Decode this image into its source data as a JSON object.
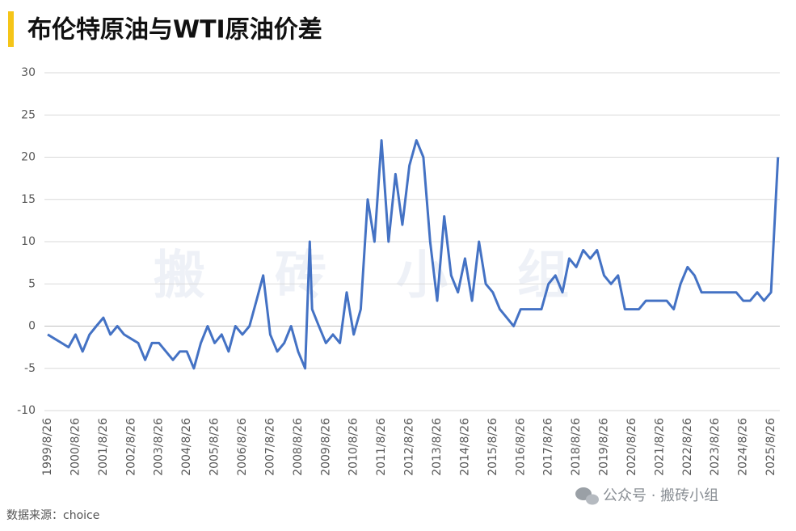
{
  "chart_data": {
    "type": "line",
    "title": "布伦特原油与WTI原油价差",
    "x": [
      "1999/8/26",
      "1999/11/26",
      "2000/2/26",
      "2000/5/26",
      "2000/8/26",
      "2000/11/26",
      "2001/2/26",
      "2001/5/26",
      "2001/8/26",
      "2001/11/26",
      "2002/2/26",
      "2002/5/26",
      "2002/8/26",
      "2002/11/26",
      "2003/2/26",
      "2003/5/26",
      "2003/8/26",
      "2003/11/26",
      "2004/2/26",
      "2004/5/26",
      "2004/8/26",
      "2004/11/26",
      "2005/2/26",
      "2005/5/26",
      "2005/8/26",
      "2005/11/26",
      "2006/2/26",
      "2006/5/26",
      "2006/8/26",
      "2006/11/26",
      "2007/2/26",
      "2007/5/26",
      "2007/8/26",
      "2007/11/26",
      "2008/2/26",
      "2008/5/26",
      "2008/8/26",
      "2008/11/26",
      "2009/1/26",
      "2009/2/26",
      "2009/5/26",
      "2009/8/26",
      "2009/11/26",
      "2010/2/26",
      "2010/5/26",
      "2010/8/26",
      "2010/11/26",
      "2011/2/26",
      "2011/5/26",
      "2011/8/26",
      "2011/11/26",
      "2012/2/26",
      "2012/5/26",
      "2012/8/26",
      "2012/11/26",
      "2013/2/26",
      "2013/5/26",
      "2013/8/26",
      "2013/11/26",
      "2014/2/26",
      "2014/5/26",
      "2014/8/26",
      "2014/11/26",
      "2015/2/26",
      "2015/5/26",
      "2015/8/26",
      "2015/11/26",
      "2016/2/26",
      "2016/5/26",
      "2016/8/26",
      "2016/11/26",
      "2017/2/26",
      "2017/5/26",
      "2017/8/26",
      "2017/11/26",
      "2018/2/26",
      "2018/5/26",
      "2018/8/26",
      "2018/11/26",
      "2019/2/26",
      "2019/5/26",
      "2019/8/26",
      "2019/11/26",
      "2020/2/26",
      "2020/5/26",
      "2020/8/26",
      "2020/11/26",
      "2021/2/26",
      "2021/5/26",
      "2021/8/26",
      "2021/11/26",
      "2022/2/26",
      "2022/5/26",
      "2022/8/26",
      "2022/11/26",
      "2023/2/26",
      "2023/5/26",
      "2023/8/26",
      "2023/11/26",
      "2024/2/26",
      "2024/5/26",
      "2024/8/26",
      "2024/11/26",
      "2025/2/26",
      "2025/5/26",
      "2025/8/26",
      "2025/11/26"
    ],
    "values": [
      -1,
      -1.5,
      -2,
      -2.5,
      -1,
      -3,
      -1,
      0,
      1,
      -1,
      0,
      -1,
      -1.5,
      -2,
      -4,
      -2,
      -2,
      -3,
      -4,
      -3,
      -3,
      -5,
      -2,
      0,
      -2,
      -1,
      -3,
      0,
      -1,
      0,
      3,
      6,
      -1,
      -3,
      -2,
      0,
      -3,
      -5,
      10,
      2,
      0,
      -2,
      -1,
      -2,
      4,
      -1,
      2,
      15,
      10,
      22,
      10,
      18,
      12,
      19,
      22,
      20,
      10,
      3,
      13,
      6,
      4,
      8,
      3,
      10,
      5,
      4,
      2,
      1,
      0,
      2,
      2,
      2,
      2,
      5,
      6,
      4,
      8,
      7,
      9,
      8,
      9,
      6,
      5,
      6,
      2,
      2,
      2,
      3,
      3,
      3,
      3,
      2,
      5,
      7,
      6,
      4,
      4,
      4,
      4,
      4,
      4,
      3,
      3,
      4,
      3,
      4,
      20
    ],
    "color": "#4472c4",
    "xlim": [
      "1999/8/26",
      "2025/12/20"
    ],
    "xticks": [
      "1999/8/26",
      "2000/8/26",
      "2001/8/26",
      "2002/8/26",
      "2003/8/26",
      "2004/8/26",
      "2005/8/26",
      "2006/8/26",
      "2007/8/26",
      "2008/8/26",
      "2009/8/26",
      "2010/8/26",
      "2011/8/26",
      "2012/8/26",
      "2013/8/26",
      "2014/8/26",
      "2015/8/26",
      "2016/8/26",
      "2017/8/26",
      "2018/8/26",
      "2019/8/26",
      "2020/8/26",
      "2021/8/26",
      "2022/8/26",
      "2023/8/26",
      "2024/8/26",
      "2025/8/26"
    ],
    "ylim": [
      -10,
      30
    ],
    "yticks": [
      -10,
      -5,
      0,
      5,
      10,
      15,
      20,
      25,
      30
    ],
    "grid": true
  },
  "watermark": [
    "搬",
    "砖",
    "小",
    "组"
  ],
  "source": "数据来源：choice",
  "footer": "公众号 · 搬砖小组"
}
